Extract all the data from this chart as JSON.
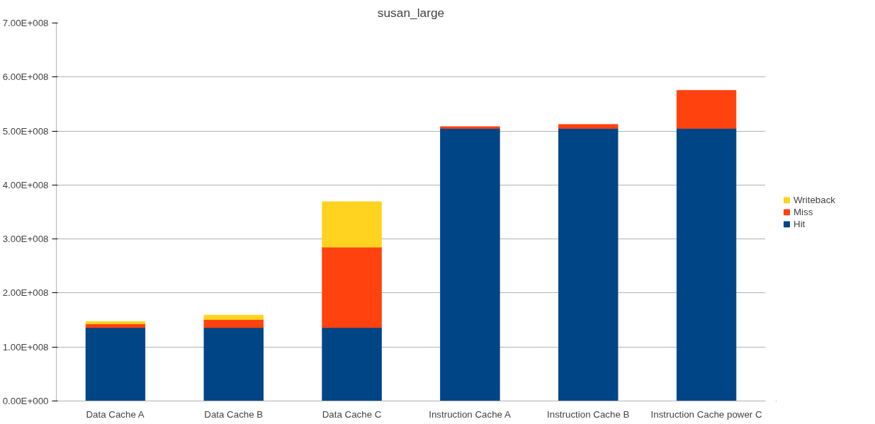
{
  "chart_data": {
    "type": "bar",
    "title": "susan_large",
    "stacked": true,
    "categories": [
      "Data Cache A",
      "Data Cache B",
      "Data Cache C",
      "Instruction Cache A",
      "Instruction Cache B",
      "Instruction Cache power C"
    ],
    "series": [
      {
        "name": "Hit",
        "color": "#004586",
        "values": [
          136000000,
          136000000,
          136000000,
          505000000,
          505000000,
          505000000
        ]
      },
      {
        "name": "Miss",
        "color": "#ff420e",
        "values": [
          7000000,
          15000000,
          149000000,
          3000000,
          7000000,
          70000000
        ]
      },
      {
        "name": "Writeback",
        "color": "#ffd320",
        "values": [
          4000000,
          8000000,
          84000000,
          null,
          null,
          null
        ]
      }
    ],
    "ylim": [
      0,
      700000000
    ],
    "yticks": [
      {
        "value": 0,
        "label": "0.00E+000"
      },
      {
        "value": 100000000,
        "label": "1.00E+008"
      },
      {
        "value": 200000000,
        "label": "2.00E+008"
      },
      {
        "value": 300000000,
        "label": "3.00E+008"
      },
      {
        "value": 400000000,
        "label": "4.00E+008"
      },
      {
        "value": 500000000,
        "label": "5.00E+008"
      },
      {
        "value": 600000000,
        "label": "6.00E+008"
      },
      {
        "value": 700000000,
        "label": "7.00E+008"
      }
    ],
    "grid": "y",
    "legend": "right"
  }
}
